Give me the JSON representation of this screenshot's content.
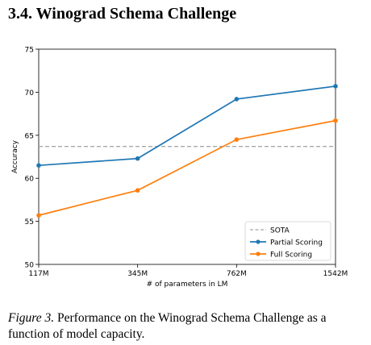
{
  "section": {
    "number": "3.4.",
    "title": "Winograd Schema Challenge"
  },
  "caption": {
    "label": "Figure 3.",
    "text": "Performance on the Winograd Schema Challenge as a function of model capacity."
  },
  "chart_data": {
    "type": "line",
    "title": "",
    "xlabel": "# of parameters in LM",
    "ylabel": "Accuracy",
    "categories": [
      "117M",
      "345M",
      "762M",
      "1542M"
    ],
    "ylim": [
      50,
      75
    ],
    "yticks": [
      50,
      55,
      60,
      65,
      70,
      75
    ],
    "grid": false,
    "legend_position": "bottom-right",
    "reference_lines": [
      {
        "name": "SOTA",
        "value": 63.7,
        "color": "#a8a8a8",
        "style": "dashed"
      }
    ],
    "series": [
      {
        "name": "Partial Scoring",
        "color": "#1f77b4",
        "values": [
          61.5,
          62.3,
          69.2,
          70.7
        ]
      },
      {
        "name": "Full Scoring",
        "color": "#ff7f0e",
        "values": [
          55.7,
          58.6,
          64.5,
          66.7
        ]
      }
    ]
  }
}
